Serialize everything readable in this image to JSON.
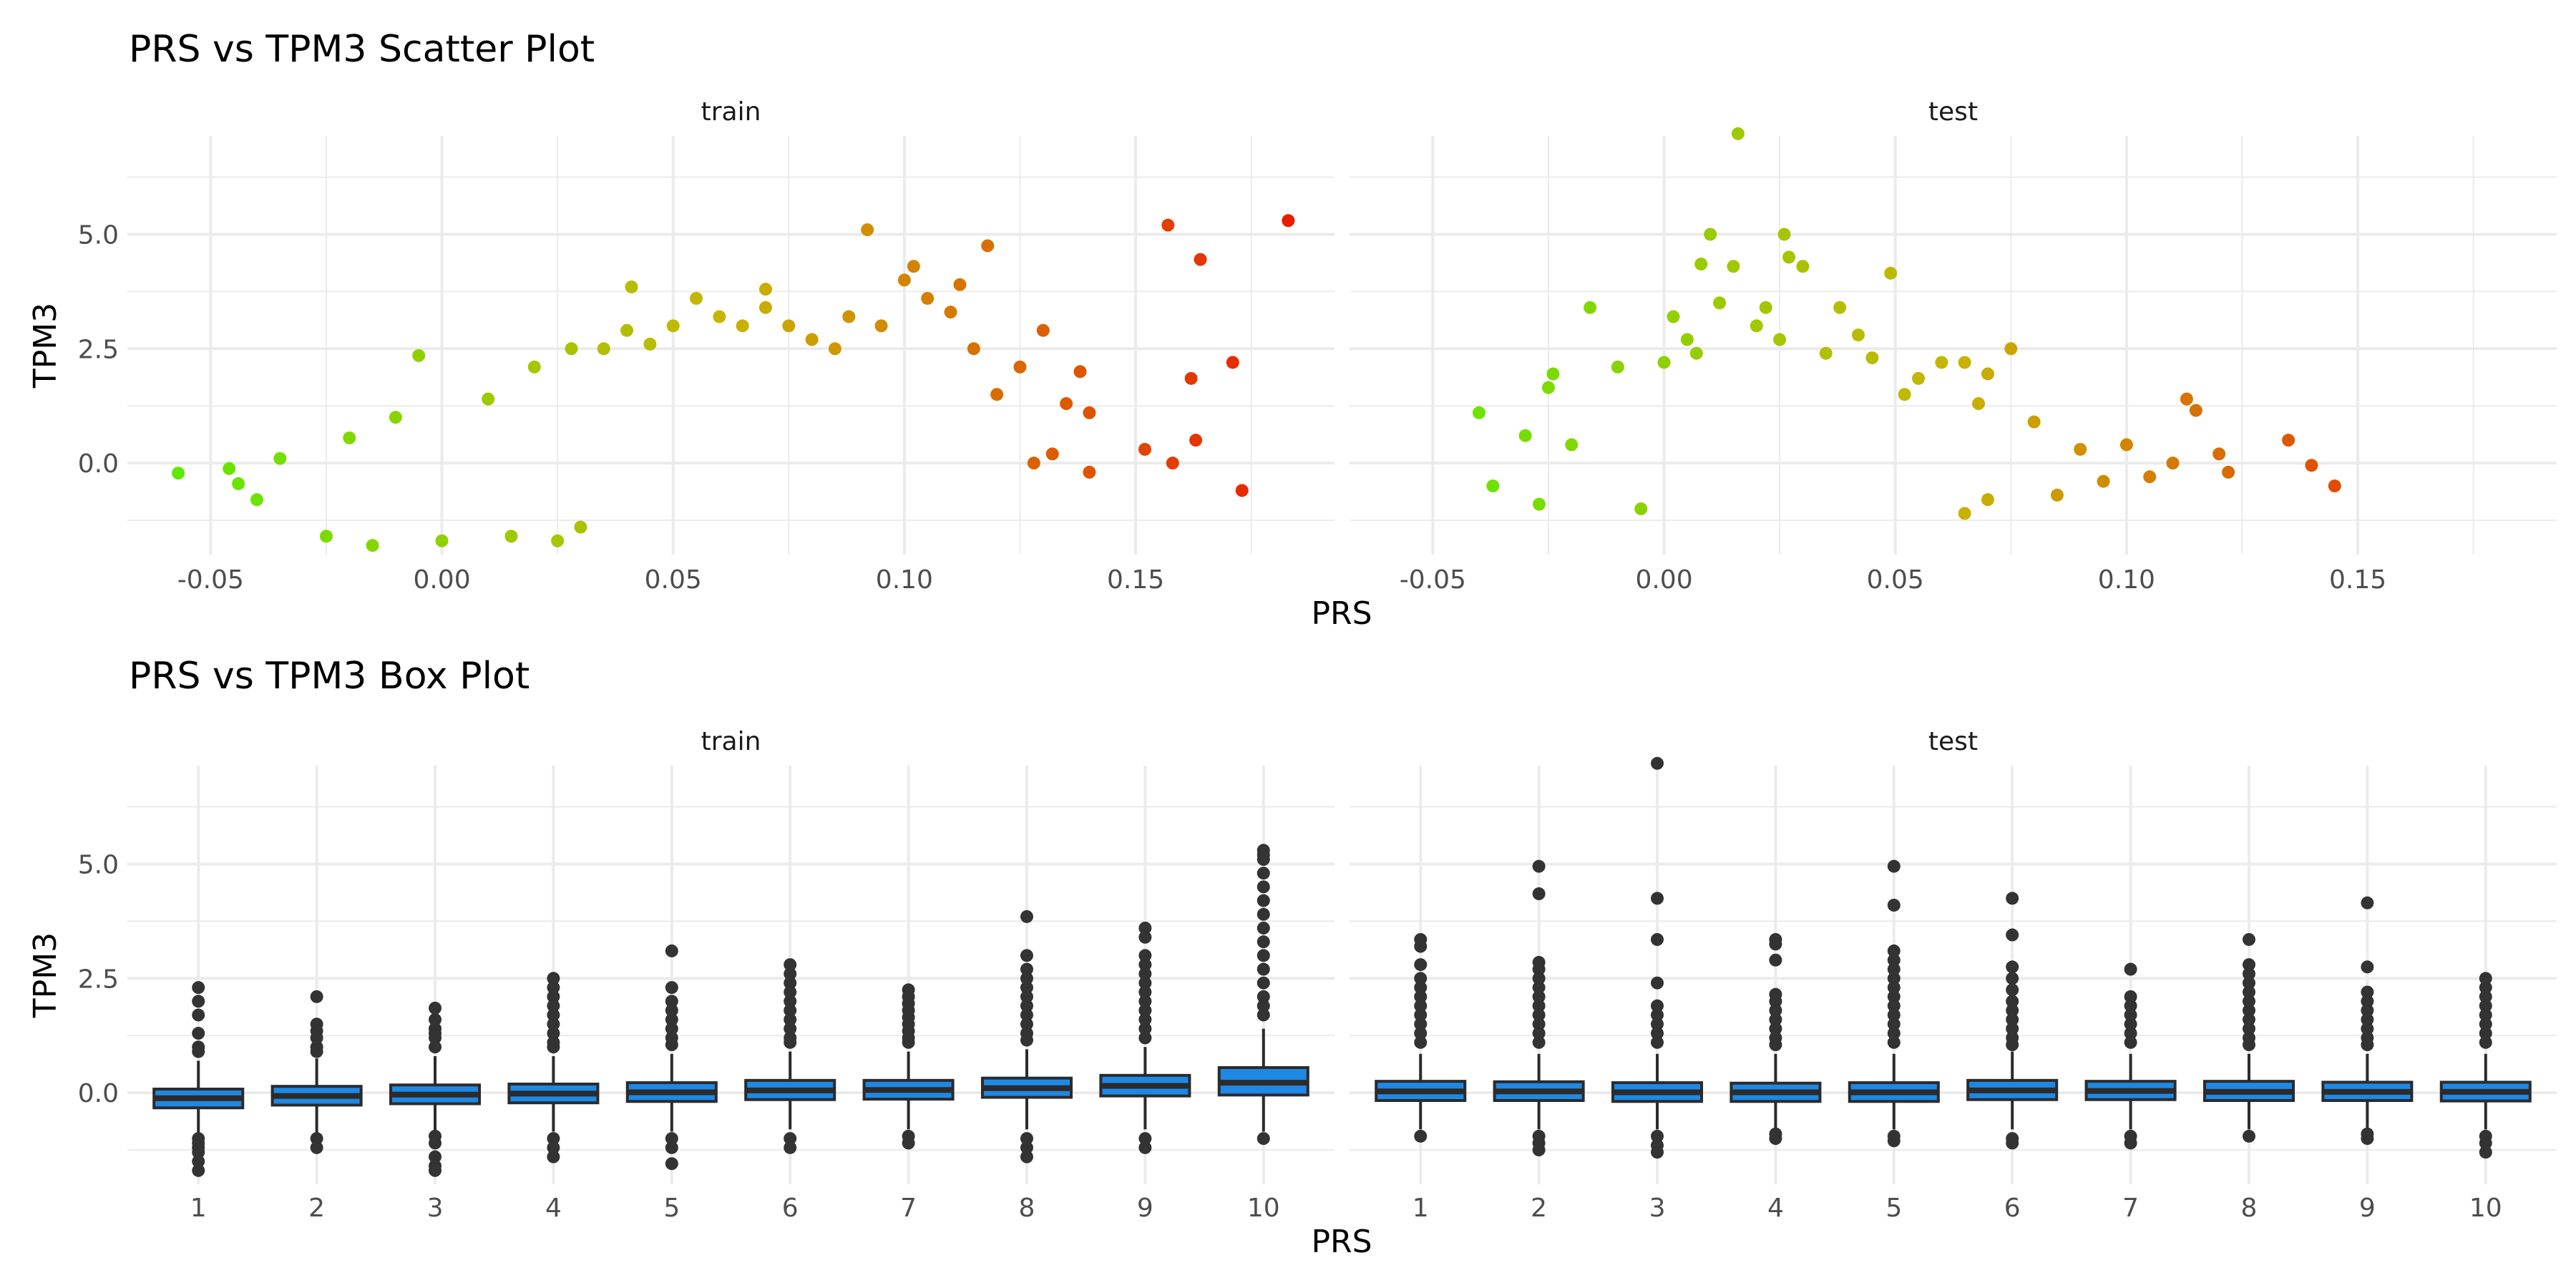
{
  "figure": {
    "scatter_title": "PRS vs TPM3 Scatter Plot",
    "box_title": "PRS vs TPM3 Box Plot"
  },
  "chart_data": [
    {
      "type": "scatter",
      "title": "PRS vs TPM3 Scatter Plot",
      "xlabel": "PRS",
      "ylabel": "TPM3",
      "facets": [
        "train",
        "test"
      ],
      "xlim": [
        -0.068,
        0.193
      ],
      "ylim": [
        -2.0,
        7.15
      ],
      "x_ticks": [
        -0.05,
        0.0,
        0.05,
        0.1,
        0.15
      ],
      "x_tick_labels": [
        "-0.05",
        "0.00",
        "0.05",
        "0.10",
        "0.15"
      ],
      "y_ticks": [
        0.0,
        2.5,
        5.0
      ],
      "y_tick_labels": [
        "0.0",
        "2.5",
        "5.0"
      ],
      "color_scale": {
        "low": "#55ee00",
        "mid": "#c8b400",
        "high": "#ee1100",
        "mapped_to": "PRS"
      },
      "grid": true,
      "legend": "none",
      "series": [
        {
          "name": "train",
          "points": [
            [
              -0.057,
              -0.22
            ],
            [
              -0.046,
              -0.12
            ],
            [
              -0.044,
              -0.45
            ],
            [
              -0.04,
              -0.8
            ],
            [
              -0.035,
              0.1
            ],
            [
              -0.025,
              -1.6
            ],
            [
              -0.02,
              0.55
            ],
            [
              -0.015,
              -1.8
            ],
            [
              -0.01,
              1.0
            ],
            [
              -0.005,
              2.35
            ],
            [
              0.0,
              -1.7
            ],
            [
              0.01,
              1.4
            ],
            [
              0.015,
              -1.6
            ],
            [
              0.02,
              2.1
            ],
            [
              0.025,
              -1.7
            ],
            [
              0.03,
              -1.4
            ],
            [
              0.028,
              2.5
            ],
            [
              0.035,
              2.5
            ],
            [
              0.04,
              2.9
            ],
            [
              0.041,
              3.85
            ],
            [
              0.045,
              2.6
            ],
            [
              0.05,
              3.0
            ],
            [
              0.055,
              3.6
            ],
            [
              0.06,
              3.2
            ],
            [
              0.065,
              3.0
            ],
            [
              0.07,
              3.8
            ],
            [
              0.07,
              3.4
            ],
            [
              0.075,
              3.0
            ],
            [
              0.08,
              2.7
            ],
            [
              0.085,
              2.5
            ],
            [
              0.088,
              3.2
            ],
            [
              0.092,
              5.1
            ],
            [
              0.095,
              3.0
            ],
            [
              0.1,
              4.0
            ],
            [
              0.102,
              4.3
            ],
            [
              0.105,
              3.6
            ],
            [
              0.11,
              3.3
            ],
            [
              0.112,
              3.9
            ],
            [
              0.115,
              2.5
            ],
            [
              0.118,
              4.75
            ],
            [
              0.12,
              1.5
            ],
            [
              0.125,
              2.1
            ],
            [
              0.128,
              0.0
            ],
            [
              0.13,
              2.9
            ],
            [
              0.132,
              0.2
            ],
            [
              0.135,
              1.3
            ],
            [
              0.138,
              2.0
            ],
            [
              0.14,
              1.1
            ],
            [
              0.14,
              -0.2
            ],
            [
              0.152,
              0.3
            ],
            [
              0.157,
              5.2
            ],
            [
              0.158,
              0.0
            ],
            [
              0.162,
              1.85
            ],
            [
              0.163,
              0.5
            ],
            [
              0.164,
              4.45
            ],
            [
              0.171,
              2.2
            ],
            [
              0.173,
              -0.6
            ],
            [
              0.183,
              5.3
            ]
          ]
        },
        {
          "name": "test",
          "points": [
            [
              -0.04,
              1.1
            ],
            [
              -0.037,
              -0.5
            ],
            [
              -0.03,
              0.6
            ],
            [
              -0.027,
              -0.9
            ],
            [
              -0.025,
              1.65
            ],
            [
              -0.024,
              1.95
            ],
            [
              -0.02,
              0.4
            ],
            [
              -0.016,
              3.4
            ],
            [
              -0.01,
              2.1
            ],
            [
              -0.005,
              -1.0
            ],
            [
              0.0,
              2.2
            ],
            [
              0.002,
              3.2
            ],
            [
              0.005,
              2.7
            ],
            [
              0.007,
              2.4
            ],
            [
              0.008,
              4.35
            ],
            [
              0.01,
              5.0
            ],
            [
              0.012,
              3.5
            ],
            [
              0.015,
              4.3
            ],
            [
              0.016,
              7.2
            ],
            [
              0.02,
              3.0
            ],
            [
              0.022,
              3.4
            ],
            [
              0.025,
              2.7
            ],
            [
              0.026,
              5.0
            ],
            [
              0.027,
              4.5
            ],
            [
              0.03,
              4.3
            ],
            [
              0.035,
              2.4
            ],
            [
              0.038,
              3.4
            ],
            [
              0.042,
              2.8
            ],
            [
              0.045,
              2.3
            ],
            [
              0.049,
              4.15
            ],
            [
              0.052,
              1.5
            ],
            [
              0.055,
              1.85
            ],
            [
              0.06,
              2.2
            ],
            [
              0.065,
              2.2
            ],
            [
              0.068,
              1.3
            ],
            [
              0.07,
              1.95
            ],
            [
              0.075,
              2.5
            ],
            [
              0.065,
              -1.1
            ],
            [
              0.07,
              -0.8
            ],
            [
              0.08,
              0.9
            ],
            [
              0.085,
              -0.7
            ],
            [
              0.09,
              0.3
            ],
            [
              0.095,
              -0.4
            ],
            [
              0.1,
              0.4
            ],
            [
              0.105,
              -0.3
            ],
            [
              0.11,
              0.0
            ],
            [
              0.113,
              1.4
            ],
            [
              0.115,
              1.15
            ],
            [
              0.12,
              0.2
            ],
            [
              0.122,
              -0.2
            ],
            [
              0.135,
              0.5
            ],
            [
              0.14,
              -0.05
            ],
            [
              0.145,
              -0.5
            ]
          ]
        }
      ]
    },
    {
      "type": "box",
      "title": "PRS vs TPM3 Box Plot",
      "xlabel": "PRS",
      "ylabel": "TPM3",
      "facets": [
        "train",
        "test"
      ],
      "categories": [
        "1",
        "2",
        "3",
        "4",
        "5",
        "6",
        "7",
        "8",
        "9",
        "10"
      ],
      "ylim": [
        -2.0,
        7.15
      ],
      "y_ticks": [
        0.0,
        2.5,
        5.0
      ],
      "y_tick_labels": [
        "0.0",
        "2.5",
        "5.0"
      ],
      "box_fill": "#1e88e5",
      "box_line": "#2b2b2b",
      "grid": true,
      "legend": "none",
      "series": [
        {
          "name": "train",
          "boxes": [
            {
              "category": "1",
              "lower": -0.95,
              "q1": -0.33,
              "median": -0.12,
              "q3": 0.08,
              "upper": 0.7,
              "outliers": [
                2.3,
                2.0,
                1.7,
                1.3,
                1.0,
                0.9,
                -1.0,
                -1.1,
                -1.2,
                -1.3,
                -1.5,
                -1.7
              ]
            },
            {
              "category": "2",
              "lower": -0.9,
              "q1": -0.27,
              "median": -0.07,
              "q3": 0.14,
              "upper": 0.75,
              "outliers": [
                2.1,
                1.5,
                1.35,
                1.2,
                1.0,
                0.9,
                -1.0,
                -1.2
              ]
            },
            {
              "category": "3",
              "lower": -0.85,
              "q1": -0.24,
              "median": -0.04,
              "q3": 0.17,
              "upper": 0.8,
              "outliers": [
                1.85,
                1.6,
                1.4,
                1.3,
                1.2,
                1.0,
                -0.95,
                -1.1,
                -1.4,
                -1.6,
                -1.7
              ]
            },
            {
              "category": "4",
              "lower": -0.85,
              "q1": -0.22,
              "median": -0.02,
              "q3": 0.19,
              "upper": 0.8,
              "outliers": [
                2.5,
                2.3,
                2.1,
                1.9,
                1.7,
                1.5,
                1.3,
                1.1,
                1.0,
                -1.0,
                -1.2,
                -1.4
              ]
            },
            {
              "category": "5",
              "lower": -0.85,
              "q1": -0.19,
              "median": 0.01,
              "q3": 0.22,
              "upper": 0.85,
              "outliers": [
                3.1,
                2.3,
                2.0,
                1.8,
                1.6,
                1.4,
                1.2,
                1.05,
                -1.0,
                -1.2,
                -1.55
              ]
            },
            {
              "category": "6",
              "lower": -0.8,
              "q1": -0.15,
              "median": 0.05,
              "q3": 0.27,
              "upper": 0.9,
              "outliers": [
                2.8,
                2.6,
                2.4,
                2.2,
                2.0,
                1.8,
                1.6,
                1.4,
                1.2,
                1.1,
                -1.0,
                -1.2
              ]
            },
            {
              "category": "7",
              "lower": -0.8,
              "q1": -0.14,
              "median": 0.06,
              "q3": 0.27,
              "upper": 0.9,
              "outliers": [
                2.25,
                2.1,
                1.95,
                1.8,
                1.65,
                1.5,
                1.35,
                1.2,
                1.1,
                -0.95,
                -1.1
              ]
            },
            {
              "category": "8",
              "lower": -0.8,
              "q1": -0.1,
              "median": 0.1,
              "q3": 0.32,
              "upper": 0.95,
              "outliers": [
                3.85,
                3.0,
                2.7,
                2.5,
                2.3,
                2.1,
                1.9,
                1.7,
                1.5,
                1.3,
                1.15,
                -1.0,
                -1.2,
                -1.4
              ]
            },
            {
              "category": "9",
              "lower": -0.8,
              "q1": -0.07,
              "median": 0.15,
              "q3": 0.38,
              "upper": 1.0,
              "outliers": [
                3.6,
                3.4,
                3.0,
                2.8,
                2.6,
                2.4,
                2.2,
                2.0,
                1.8,
                1.6,
                1.4,
                1.2,
                -1.0,
                -1.2
              ]
            },
            {
              "category": "10",
              "lower": -0.85,
              "q1": -0.05,
              "median": 0.22,
              "q3": 0.55,
              "upper": 1.4,
              "outliers": [
                5.3,
                5.2,
                5.1,
                4.8,
                4.5,
                4.2,
                3.9,
                3.6,
                3.3,
                3.0,
                2.7,
                2.4,
                2.1,
                1.9,
                1.7,
                -1.0
              ]
            }
          ]
        },
        {
          "name": "test",
          "boxes": [
            {
              "category": "1",
              "lower": -0.8,
              "q1": -0.17,
              "median": 0.03,
              "q3": 0.25,
              "upper": 0.85,
              "outliers": [
                3.35,
                3.2,
                2.8,
                2.5,
                2.3,
                2.1,
                1.9,
                1.7,
                1.5,
                1.3,
                1.1,
                -0.95
              ]
            },
            {
              "category": "2",
              "lower": -0.8,
              "q1": -0.17,
              "median": 0.03,
              "q3": 0.24,
              "upper": 0.85,
              "outliers": [
                4.95,
                4.35,
                2.85,
                2.7,
                2.5,
                2.3,
                2.1,
                1.9,
                1.7,
                1.5,
                1.3,
                1.1,
                -0.95,
                -1.1,
                -1.25
              ]
            },
            {
              "category": "3",
              "lower": -0.8,
              "q1": -0.19,
              "median": 0.01,
              "q3": 0.22,
              "upper": 0.85,
              "outliers": [
                7.2,
                4.25,
                3.35,
                2.4,
                1.9,
                1.7,
                1.5,
                1.3,
                1.1,
                -0.95,
                -1.15,
                -1.3
              ]
            },
            {
              "category": "4",
              "lower": -0.8,
              "q1": -0.19,
              "median": 0.01,
              "q3": 0.21,
              "upper": 0.85,
              "outliers": [
                3.35,
                3.25,
                2.9,
                2.15,
                2.0,
                1.8,
                1.6,
                1.4,
                1.2,
                1.05,
                -0.9,
                -1.0
              ]
            },
            {
              "category": "5",
              "lower": -0.8,
              "q1": -0.19,
              "median": 0.01,
              "q3": 0.22,
              "upper": 0.85,
              "outliers": [
                4.95,
                4.1,
                3.1,
                2.9,
                2.7,
                2.5,
                2.3,
                2.1,
                1.9,
                1.7,
                1.5,
                1.3,
                1.1,
                -0.95,
                -1.05
              ]
            },
            {
              "category": "6",
              "lower": -0.8,
              "q1": -0.15,
              "median": 0.05,
              "q3": 0.27,
              "upper": 0.9,
              "outliers": [
                4.25,
                3.45,
                2.75,
                2.5,
                2.25,
                2.0,
                1.8,
                1.6,
                1.4,
                1.2,
                1.05,
                -1.0,
                -1.1
              ]
            },
            {
              "category": "7",
              "lower": -0.8,
              "q1": -0.15,
              "median": 0.04,
              "q3": 0.25,
              "upper": 0.85,
              "outliers": [
                2.7,
                2.1,
                1.9,
                1.7,
                1.5,
                1.3,
                1.1,
                -0.95,
                -1.1
              ]
            },
            {
              "category": "8",
              "lower": -0.8,
              "q1": -0.17,
              "median": 0.02,
              "q3": 0.25,
              "upper": 0.85,
              "outliers": [
                3.35,
                2.8,
                2.6,
                2.4,
                2.2,
                2.0,
                1.8,
                1.6,
                1.4,
                1.2,
                1.05,
                -0.95
              ]
            },
            {
              "category": "9",
              "lower": -0.8,
              "q1": -0.17,
              "median": 0.02,
              "q3": 0.23,
              "upper": 0.85,
              "outliers": [
                4.15,
                2.75,
                2.2,
                2.0,
                1.8,
                1.6,
                1.4,
                1.2,
                1.05,
                -0.9,
                -1.0
              ]
            },
            {
              "category": "10",
              "lower": -0.8,
              "q1": -0.18,
              "median": 0.02,
              "q3": 0.23,
              "upper": 0.85,
              "outliers": [
                2.5,
                2.3,
                2.1,
                1.9,
                1.7,
                1.5,
                1.3,
                1.1,
                -0.95,
                -1.1,
                -1.3
              ]
            }
          ]
        }
      ]
    }
  ]
}
